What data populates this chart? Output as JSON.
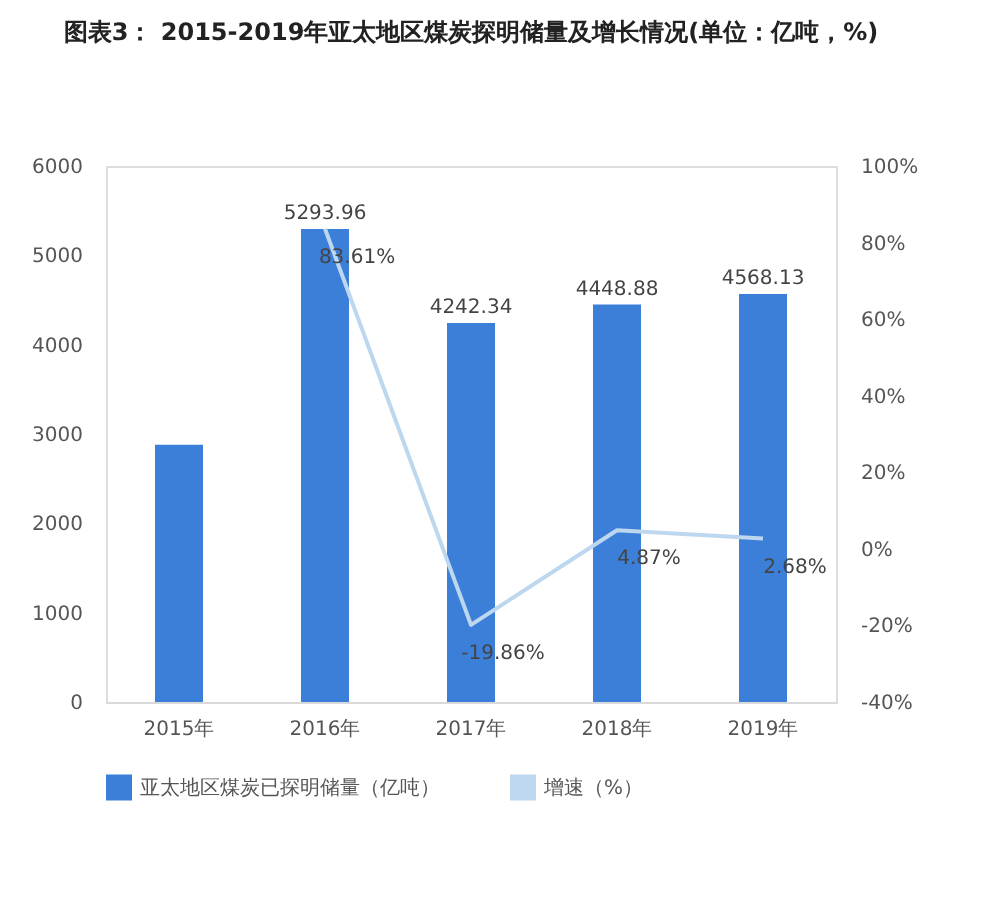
{
  "chart_data": {
    "type": "bar",
    "title": "图表3： 2015-2019年亚太地区煤炭探明储量及增长情况(单位：亿吨，%)",
    "categories": [
      "2015年",
      "2016年",
      "2017年",
      "2018年",
      "2019年"
    ],
    "series": [
      {
        "name": "亚太地区煤炭已探明储量（亿吨）",
        "color": "#3c7fd9",
        "values": [
          2880,
          5293.96,
          4242.34,
          4448.88,
          4568.13
        ],
        "value_labels": [
          null,
          "5293.96",
          "4242.34",
          "4448.88",
          "4568.13"
        ]
      },
      {
        "name": "增速（%）",
        "type": "line",
        "axis": "y2",
        "color": "#bdd7ee",
        "values": [
          null,
          83.61,
          -19.86,
          4.87,
          2.68
        ],
        "value_labels": [
          null,
          "83.61%",
          "-19.86%",
          "4.87%",
          "2.68%"
        ]
      }
    ],
    "ylim": [
      0,
      6000
    ],
    "yticks": [
      0,
      1000,
      2000,
      3000,
      4000,
      5000,
      6000
    ],
    "y2lim": [
      -40,
      100
    ],
    "y2ticks": [
      {
        "value": -40,
        "label": "-40%"
      },
      {
        "value": -20,
        "label": "-20%"
      },
      {
        "value": 0,
        "label": "0%"
      },
      {
        "value": 20,
        "label": "20%"
      },
      {
        "value": 40,
        "label": "40%"
      },
      {
        "value": 60,
        "label": "60%"
      },
      {
        "value": 80,
        "label": "80%"
      },
      {
        "value": 100,
        "label": "100%"
      }
    ],
    "grid": false,
    "legend": "bottom",
    "marker": "none",
    "line_style": "solid"
  }
}
